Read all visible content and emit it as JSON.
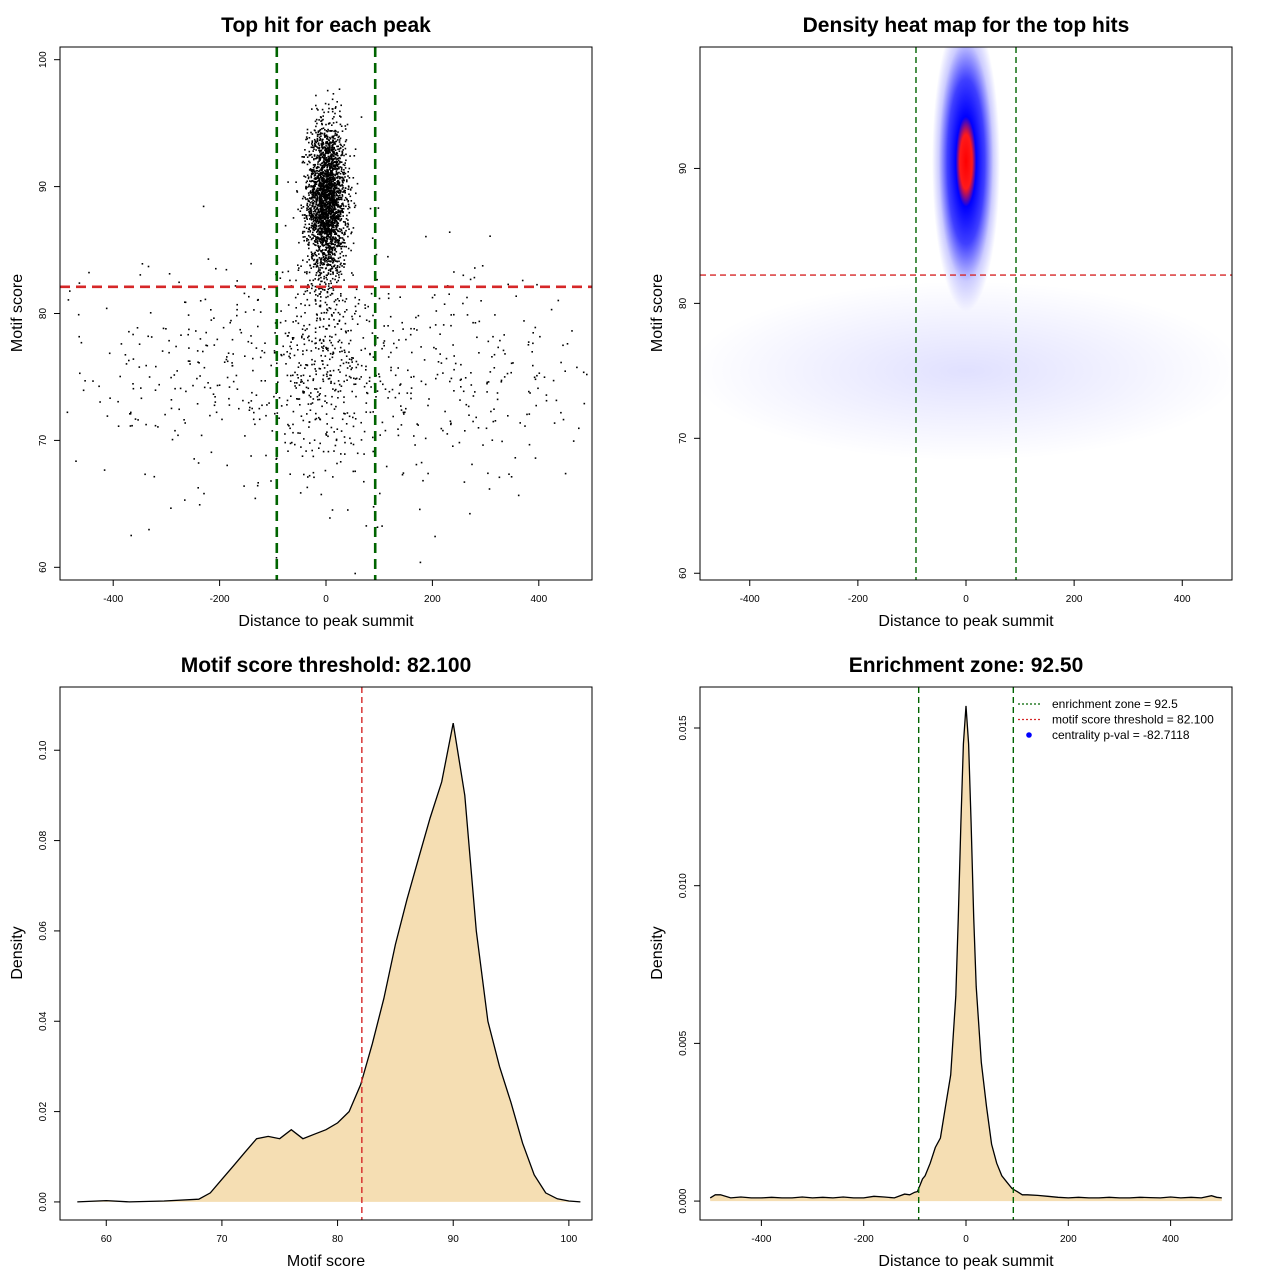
{
  "colors": {
    "points": "#000000",
    "threshold_line": "#d62728",
    "zone_line": "#006400",
    "fill": "#f5deb3",
    "heat_low": "#ffffff",
    "heat_mid": "#0000ff",
    "heat_high": "#ff0000",
    "legend_dot": "#0000ff"
  },
  "chart_data": [
    {
      "type": "scatter",
      "title": "Top hit for each peak",
      "xlabel": "Distance to peak summit",
      "ylabel": "Motif score",
      "xlim": [
        -500,
        500
      ],
      "ylim": [
        59,
        101
      ],
      "xticks": [
        -400,
        -200,
        0,
        200,
        400
      ],
      "yticks": [
        60,
        70,
        80,
        90,
        100
      ],
      "hlines": [
        82.1
      ],
      "vlines": [
        -92.5,
        92.5
      ],
      "point_clusters": [
        {
          "x_center": 0,
          "x_sd": 18,
          "y_center": 89,
          "y_sd": 3,
          "n": 2600
        },
        {
          "x_center": 0,
          "x_sd": 45,
          "y_center": 77,
          "y_sd": 4,
          "n": 300
        },
        {
          "x_center": 0,
          "x_sd": 260,
          "y_center": 75,
          "y_sd": 4.5,
          "n": 750
        }
      ],
      "legend": "none",
      "grid": false
    },
    {
      "type": "heatmap",
      "title": "Density heat map for the top hits",
      "xlabel": "Distance to peak summit",
      "ylabel": "Motif score",
      "xlim": [
        -492,
        492
      ],
      "ylim": [
        59.5,
        99
      ],
      "xticks": [
        -400,
        -200,
        0,
        200,
        400
      ],
      "yticks": [
        60,
        70,
        80,
        90
      ],
      "hlines": [
        82.1
      ],
      "vlines": [
        -92.5,
        92.5
      ],
      "peak": {
        "x": 0,
        "y": 90
      },
      "legend": "none",
      "grid": false
    },
    {
      "type": "area",
      "title": "Motif score threshold: 82.100",
      "xlabel": "Motif score",
      "ylabel": "Density",
      "xlim": [
        56,
        102
      ],
      "ylim": [
        -0.004,
        0.114
      ],
      "xticks": [
        60,
        70,
        80,
        90,
        100
      ],
      "yticks": [
        0.0,
        0.02,
        0.04,
        0.06,
        0.08,
        0.1
      ],
      "ytick_labels": [
        "0.00",
        "0.02",
        "0.04",
        "0.06",
        "0.08",
        "0.10"
      ],
      "vlines": [
        82.1
      ],
      "x": [
        57.5,
        60,
        62,
        65,
        68,
        69,
        70,
        71,
        72,
        73,
        74,
        75,
        76,
        77,
        78,
        79,
        80,
        81,
        82,
        83,
        84,
        85,
        86,
        87,
        88,
        89,
        90,
        91,
        92,
        93,
        94,
        95,
        96,
        97,
        98,
        99,
        100,
        101
      ],
      "y": [
        0.0,
        0.0003,
        0.0,
        0.0002,
        0.0006,
        0.002,
        0.005,
        0.008,
        0.011,
        0.014,
        0.0145,
        0.014,
        0.016,
        0.014,
        0.015,
        0.016,
        0.0175,
        0.02,
        0.026,
        0.035,
        0.045,
        0.057,
        0.067,
        0.076,
        0.085,
        0.093,
        0.106,
        0.09,
        0.06,
        0.04,
        0.03,
        0.022,
        0.013,
        0.006,
        0.002,
        0.0007,
        0.0002,
        0.0
      ],
      "legend": "none",
      "grid": false
    },
    {
      "type": "area",
      "title": "Enrichment zone: 92.50",
      "xlabel": "Distance to peak summit",
      "ylabel": "Density",
      "xlim": [
        -520,
        520
      ],
      "ylim": [
        -0.0006,
        0.0163
      ],
      "xticks": [
        -400,
        -200,
        0,
        200,
        400
      ],
      "yticks": [
        0.0,
        0.005,
        0.01,
        0.015
      ],
      "ytick_labels": [
        "0.000",
        "0.005",
        "0.010",
        "0.015"
      ],
      "vlines": [
        -92.5,
        92.5
      ],
      "x": [
        -500,
        -490,
        -480,
        -460,
        -440,
        -420,
        -400,
        -380,
        -360,
        -340,
        -320,
        -300,
        -280,
        -260,
        -240,
        -220,
        -200,
        -180,
        -160,
        -140,
        -120,
        -110,
        -100,
        -95,
        -90,
        -85,
        -80,
        -70,
        -60,
        -50,
        -40,
        -30,
        -20,
        -15,
        -10,
        -5,
        0,
        5,
        10,
        15,
        20,
        30,
        40,
        50,
        60,
        70,
        80,
        90,
        100,
        110,
        120,
        140,
        160,
        180,
        200,
        220,
        240,
        260,
        280,
        300,
        320,
        340,
        360,
        380,
        400,
        420,
        440,
        460,
        480,
        490,
        500
      ],
      "y": [
        0.0001,
        0.0002,
        0.0002,
        0.0001,
        0.00013,
        0.0001,
        0.0001,
        0.00012,
        0.0001,
        0.0001,
        0.00013,
        0.0001,
        0.00012,
        0.0001,
        0.00013,
        0.0001,
        0.0001,
        0.00015,
        0.00013,
        0.0001,
        0.00022,
        0.0002,
        0.00028,
        0.0003,
        0.0005,
        0.0007,
        0.0008,
        0.0012,
        0.0017,
        0.002,
        0.003,
        0.004,
        0.0065,
        0.009,
        0.012,
        0.0145,
        0.0157,
        0.0145,
        0.012,
        0.009,
        0.0068,
        0.0044,
        0.003,
        0.0018,
        0.0012,
        0.0008,
        0.0006,
        0.0004,
        0.0003,
        0.0002,
        0.0002,
        0.00018,
        0.00015,
        0.00012,
        0.0001,
        0.00012,
        0.0001,
        0.0001,
        0.00012,
        0.0001,
        0.0001,
        0.00012,
        0.00011,
        0.0001,
        0.00013,
        0.0001,
        0.00012,
        0.0001,
        0.00017,
        0.00012,
        0.0001
      ],
      "legend": {
        "placement": "top-right",
        "entries": [
          {
            "label": "enrichment zone = 92.5",
            "style": "dotted",
            "color": "#006400"
          },
          {
            "label": "motif score threshold = 82.100",
            "style": "dotted",
            "color": "#d62728"
          },
          {
            "label": "centrality p-val = -82.7118",
            "style": "point",
            "color": "#0000ff"
          }
        ]
      },
      "grid": false
    }
  ]
}
